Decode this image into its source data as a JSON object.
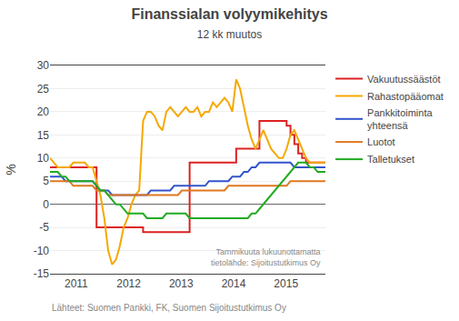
{
  "chart_data": {
    "type": "line",
    "title": "Finanssialan volyymikehitys",
    "subtitle": "12 kk muutos",
    "ylabel": "%",
    "annotations": [
      "Tammikuuta lukuunottamatta\ntietolähde: Sijoitustutkimus Oy",
      "Lähteet: Suomen Pankki, FK, Suomen Sijoitustutkimus Oy"
    ],
    "x": [
      2010.5,
      2010.573944,
      2010.647887,
      2010.721831,
      2010.795775,
      2010.869718,
      2010.943662,
      2011.017606,
      2011.091549,
      2011.165493,
      2011.239437,
      2011.31338,
      2011.387324,
      2011.461268,
      2011.535211,
      2011.609155,
      2011.683099,
      2011.757042,
      2011.830986,
      2011.90493,
      2011.978873,
      2012.052817,
      2012.126761,
      2012.200704,
      2012.274648,
      2012.348592,
      2012.422535,
      2012.496479,
      2012.570423,
      2012.644366,
      2012.71831,
      2012.792254,
      2012.866197,
      2012.940141,
      2013.014085,
      2013.088028,
      2013.161972,
      2013.235915,
      2013.309859,
      2013.383803,
      2013.457746,
      2013.53169,
      2013.605634,
      2013.679577,
      2013.753521,
      2013.827465,
      2013.901408,
      2013.975352,
      2014.049296,
      2014.123239,
      2014.197183,
      2014.271127,
      2014.34507,
      2014.419014,
      2014.492958,
      2014.566901,
      2014.640845,
      2014.714789,
      2014.788732,
      2014.862676,
      2014.93662,
      2015.010563,
      2015.084507,
      2015.158451,
      2015.232394,
      2015.306338,
      2015.380282,
      2015.454225,
      2015.528169,
      2015.602113,
      2015.676056,
      2015.75
    ],
    "xlim": [
      2010.5,
      2015.75
    ],
    "xticks": [
      2011,
      2012,
      2013,
      2014,
      2015
    ],
    "ylim": [
      -15,
      30
    ],
    "yticks": [
      -15,
      -10,
      -5,
      0,
      5,
      10,
      15,
      20,
      25,
      30
    ],
    "grid": true,
    "legend": "upper right",
    "series": [
      {
        "name": "Vakuutussäästöt",
        "color": "#dd2222",
        "line_style": "steps",
        "values": [
          8,
          8,
          8,
          8,
          8,
          8,
          8,
          8,
          8,
          8,
          8,
          8,
          -5,
          -5,
          -5,
          -5,
          -5,
          -5,
          -5,
          -5,
          -5,
          -5,
          -5,
          -5,
          -6,
          -6,
          -6,
          -6,
          -6,
          -6,
          -6,
          -6,
          -6,
          -6,
          -6,
          -6,
          9,
          9,
          9,
          9,
          9,
          9,
          9,
          9,
          9,
          9,
          9,
          9,
          12,
          12,
          12,
          12,
          12,
          12,
          18,
          18,
          18,
          18,
          18,
          18,
          18,
          17,
          15,
          13,
          11,
          10,
          9,
          9,
          9,
          9,
          9,
          9
        ]
      },
      {
        "name": "Rahastopääomat",
        "color": "#f5a800",
        "values": [
          10,
          9,
          8,
          8,
          8,
          8,
          9,
          9,
          9,
          9,
          8,
          8,
          5,
          2,
          -3,
          -10,
          -13,
          -12,
          -9,
          -5,
          -3,
          0,
          2,
          3,
          18,
          20,
          20,
          19,
          17,
          16,
          20,
          21,
          20,
          19,
          20,
          21,
          20,
          20,
          21,
          19,
          20,
          20,
          22,
          21,
          22,
          23,
          22,
          20,
          27,
          25,
          21,
          17,
          14,
          12,
          14,
          16,
          14,
          12,
          11,
          10,
          10,
          12,
          15,
          16,
          14,
          12,
          10,
          9,
          9,
          9,
          9,
          9
        ]
      },
      {
        "name": "Pankkitoiminta\nyhteensä",
        "color": "#3355cc",
        "values": [
          6,
          6,
          6,
          6,
          5,
          5,
          5,
          5,
          5,
          5,
          5,
          5,
          4,
          3,
          3,
          3,
          2,
          2,
          2,
          2,
          2,
          2,
          2,
          2,
          2,
          2,
          3,
          3,
          3,
          3,
          3,
          3,
          4,
          4,
          4,
          4,
          4,
          4,
          4,
          4,
          4,
          5,
          5,
          5,
          5,
          5,
          5,
          6,
          6,
          6,
          7,
          7,
          8,
          8,
          9,
          9,
          9,
          9,
          9,
          9,
          9,
          9,
          9,
          8,
          8,
          8,
          8,
          8,
          8,
          8,
          8,
          8
        ]
      },
      {
        "name": "Luotot",
        "color": "#e07820",
        "values": [
          5,
          5,
          5,
          5,
          5,
          5,
          4,
          4,
          4,
          4,
          4,
          4,
          3,
          3,
          3,
          2,
          2,
          2,
          2,
          2,
          2,
          2,
          2,
          2,
          2,
          2,
          2,
          2,
          2,
          2,
          2,
          2,
          2,
          2,
          3,
          3,
          3,
          3,
          3,
          3,
          3,
          3,
          3,
          3,
          3,
          3,
          4,
          4,
          4,
          4,
          4,
          4,
          4,
          4,
          4,
          4,
          4,
          4,
          4,
          4,
          4,
          4,
          5,
          5,
          5,
          5,
          5,
          5,
          5,
          5,
          5,
          5
        ]
      },
      {
        "name": "Talletukset",
        "color": "#22aa22",
        "values": [
          7,
          7,
          7,
          6,
          6,
          5,
          5,
          5,
          5,
          5,
          5,
          5,
          4,
          3,
          3,
          2,
          1,
          0,
          0,
          -1,
          -2,
          -2,
          -2,
          -2,
          -2,
          -3,
          -3,
          -3,
          -3,
          -3,
          -2,
          -2,
          -2,
          -2,
          -2,
          -2,
          -3,
          -3,
          -3,
          -3,
          -3,
          -3,
          -3,
          -3,
          -3,
          -3,
          -3,
          -3,
          -3,
          -3,
          -3,
          -3,
          -2,
          -2,
          -1,
          0,
          1,
          2,
          3,
          4,
          5,
          6,
          7,
          8,
          9,
          9,
          9,
          8,
          8,
          7,
          7,
          7
        ]
      }
    ]
  }
}
